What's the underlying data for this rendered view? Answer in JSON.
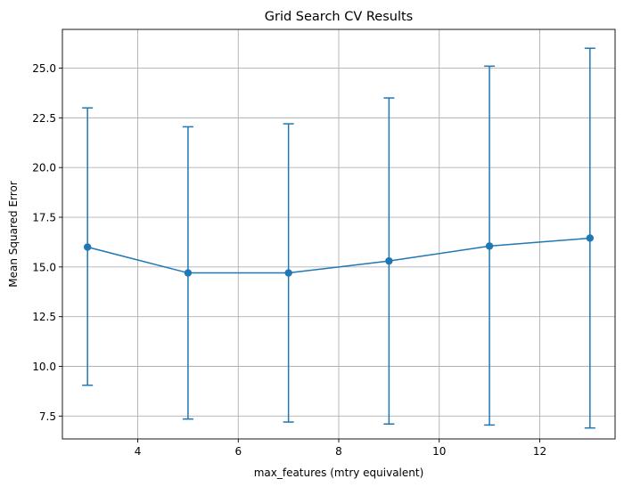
{
  "chart_data": {
    "type": "line",
    "title": "Grid Search CV Results",
    "xlabel": "max_features (mtry equivalent)",
    "ylabel": "Mean Squared Error",
    "xlim": [
      2.5,
      13.5
    ],
    "ylim": [
      6.35,
      26.95
    ],
    "xticks": [
      4,
      6,
      8,
      10,
      12
    ],
    "yticks": [
      7.5,
      10.0,
      12.5,
      15.0,
      17.5,
      20.0,
      22.5,
      25.0
    ],
    "ytick_labels": [
      "7.5",
      "10.0",
      "12.5",
      "15.0",
      "17.5",
      "20.0",
      "22.5",
      "25.0"
    ],
    "grid": true,
    "series": [
      {
        "color": "#1f77b4",
        "marker": "circle",
        "error_bars": true,
        "points": [
          {
            "x": 3,
            "y": 16.0,
            "low": 9.05,
            "high": 23.0
          },
          {
            "x": 5,
            "y": 14.7,
            "low": 7.35,
            "high": 22.05
          },
          {
            "x": 7,
            "y": 14.7,
            "low": 7.2,
            "high": 22.2
          },
          {
            "x": 9,
            "y": 15.3,
            "low": 7.1,
            "high": 23.5
          },
          {
            "x": 11,
            "y": 16.05,
            "low": 7.05,
            "high": 25.1
          },
          {
            "x": 13,
            "y": 16.45,
            "low": 6.9,
            "high": 26.0
          }
        ]
      }
    ]
  }
}
